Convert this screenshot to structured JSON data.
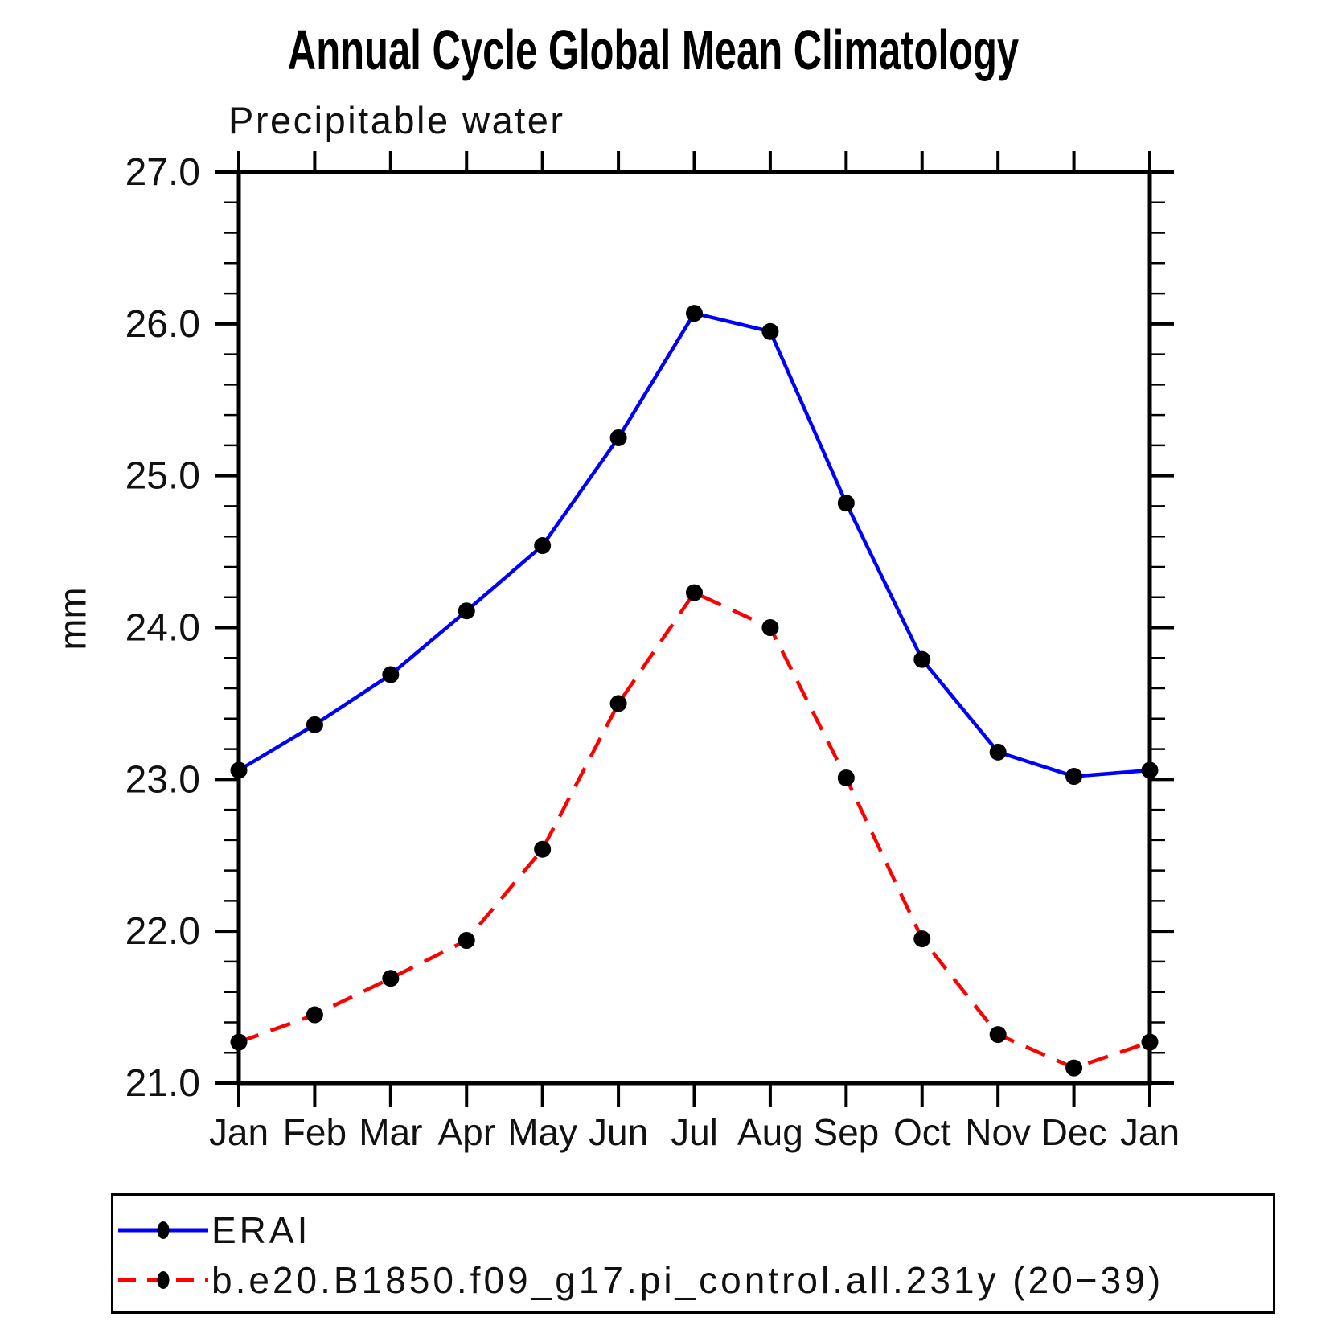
{
  "chart_data": {
    "type": "line",
    "title": "Annual Cycle Global Mean Climatology",
    "subtitle": "Precipitable water",
    "xlabel": "",
    "ylabel": "mm",
    "ylim": [
      21.0,
      27.0
    ],
    "ytick_major_step": 1.0,
    "ytick_minor_step": 0.2,
    "ytick_labels": [
      "21.0",
      "22.0",
      "23.0",
      "24.0",
      "25.0",
      "26.0",
      "27.0"
    ],
    "ytick_values": [
      21.0,
      22.0,
      23.0,
      24.0,
      25.0,
      26.0,
      27.0
    ],
    "categories": [
      "Jan",
      "Feb",
      "Mar",
      "Apr",
      "May",
      "Jun",
      "Jul",
      "Aug",
      "Sep",
      "Oct",
      "Nov",
      "Dec",
      "Jan"
    ],
    "grid": false,
    "legend_position": "bottom-left-box",
    "marker": "filled-circle",
    "marker_color": "#000000",
    "series": [
      {
        "name": "ERAI",
        "color": "#0000ff",
        "style": "solid",
        "values": [
          23.06,
          23.36,
          23.69,
          24.11,
          24.54,
          25.25,
          26.07,
          25.95,
          24.82,
          23.79,
          23.18,
          23.02,
          23.06
        ]
      },
      {
        "name": "b.e20.B1850.f09_g17.pi_control.all.231y (20−39)",
        "color": "#ff0000",
        "style": "dashed",
        "values": [
          21.27,
          21.45,
          21.69,
          21.94,
          22.54,
          23.5,
          24.23,
          24.0,
          23.01,
          21.95,
          21.32,
          21.1,
          21.27
        ]
      }
    ]
  }
}
